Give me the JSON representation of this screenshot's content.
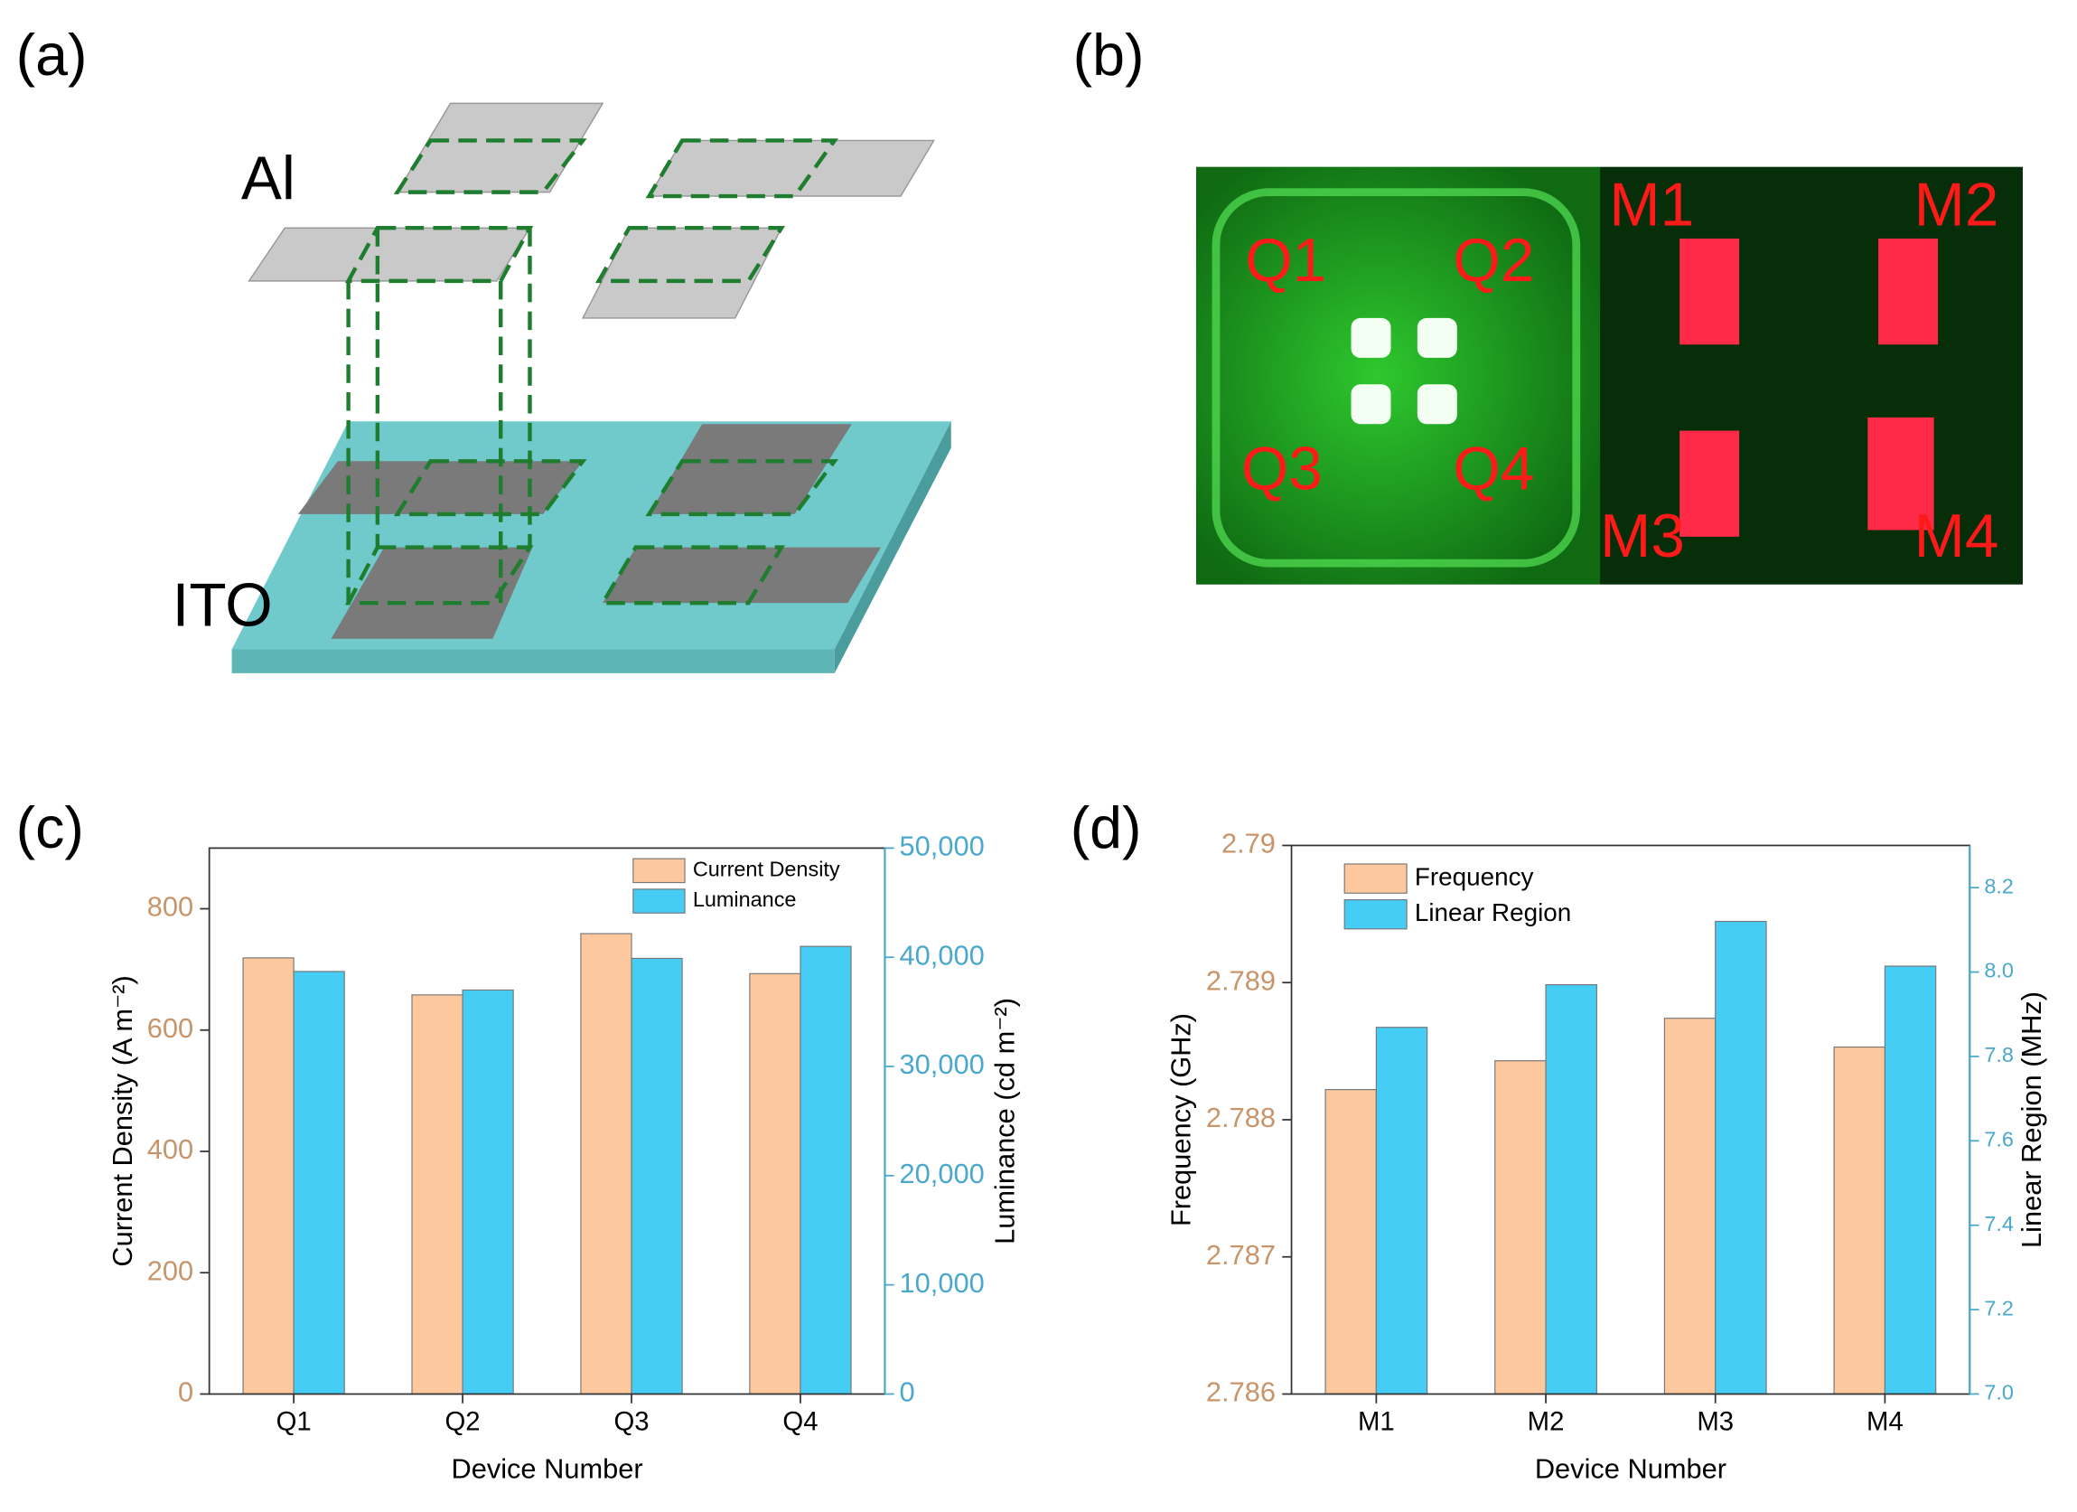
{
  "panels": {
    "a": {
      "label": "(a)",
      "top_label": "Al",
      "bottom_label": "ITO"
    },
    "b": {
      "label": "(b)",
      "quadrants": [
        "Q1",
        "Q2",
        "Q3",
        "Q4"
      ],
      "modules": [
        "M1",
        "M2",
        "M3",
        "M4"
      ]
    },
    "c": {
      "label": "(c)"
    },
    "d": {
      "label": "(d)"
    }
  },
  "chart_data": [
    {
      "type": "bar",
      "categories": [
        "Q1",
        "Q2",
        "Q3",
        "Q4"
      ],
      "series": [
        {
          "name": "Current Density",
          "color": "#fdc89e",
          "values": [
            719,
            658,
            759,
            693
          ]
        },
        {
          "name": "Luminance",
          "color": "#45cdf6",
          "axis": "y2",
          "values": [
            38700,
            37000,
            39900,
            41000
          ]
        }
      ],
      "xlabel": "Device Number",
      "ylabel": "Current Density (A m⁻²)",
      "y2label": "Luminance (cd m⁻²)",
      "ylim": [
        0,
        900
      ],
      "yticks": [
        0,
        200,
        400,
        600,
        800
      ],
      "y2lim": [
        0,
        50000
      ],
      "y2ticks": [
        0,
        {
          "value": 10000,
          "label": "10,000"
        },
        {
          "value": 20000,
          "label": "20,000"
        },
        {
          "value": 30000,
          "label": "30,000"
        },
        {
          "value": 40000,
          "label": "40,000"
        },
        {
          "value": 50000,
          "label": "50,000"
        }
      ],
      "ytick_color": "#c8956a",
      "y2tick_color": "#4aa8cc",
      "legend": "upper right"
    },
    {
      "type": "bar",
      "categories": [
        "M1",
        "M2",
        "M3",
        "M4"
      ],
      "series": [
        {
          "name": "Frequency",
          "color": "#fdc89e",
          "values": [
            2.78822,
            2.78843,
            2.78874,
            2.78853
          ]
        },
        {
          "name": "Linear Region",
          "color": "#45cdf6",
          "axis": "y2",
          "values": [
            7.869,
            7.97,
            8.12,
            8.014
          ]
        }
      ],
      "xlabel": "Device Number",
      "ylabel": "Frequency (GHz)",
      "y2label": "Linear Region (MHz)",
      "ylim": [
        2.786,
        2.79
      ],
      "yticks": [
        2.786,
        2.787,
        2.788,
        2.789,
        2.79
      ],
      "y2lim": [
        7.0,
        8.3
      ],
      "y2ticks": [
        {
          "value": 7,
          "label": "7.0"
        },
        7.2,
        7.4,
        7.6,
        7.8,
        {
          "value": 8,
          "label": "8.0"
        },
        8.2
      ],
      "ytick_color": "#c8956a",
      "y2tick_color": "#4aa8cc",
      "legend": "upper left"
    }
  ]
}
